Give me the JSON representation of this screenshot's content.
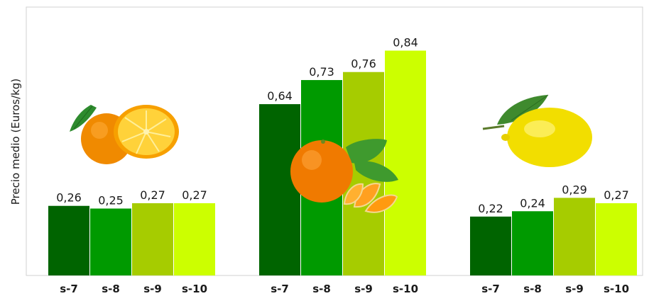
{
  "chart_data": {
    "type": "bar",
    "ylabel": "Precio medio  (Euros/kg)",
    "groups": [
      {
        "icon": "orange-fruit-icon",
        "categories": [
          "s-7",
          "s-8",
          "s-9",
          "s-10"
        ],
        "values": [
          0.26,
          0.25,
          0.27,
          0.27
        ],
        "labels": [
          "0,26",
          "0,25",
          "0,27",
          "0,27"
        ]
      },
      {
        "icon": "mandarin-fruit-icon",
        "categories": [
          "s-7",
          "s-8",
          "s-9",
          "s-10"
        ],
        "values": [
          0.64,
          0.73,
          0.76,
          0.84
        ],
        "labels": [
          "0,64",
          "0,73",
          "0,76",
          "0,84"
        ]
      },
      {
        "icon": "lemon-fruit-icon",
        "categories": [
          "s-7",
          "s-8",
          "s-9",
          "s-10"
        ],
        "values": [
          0.22,
          0.24,
          0.29,
          0.27
        ],
        "labels": [
          "0,22",
          "0,24",
          "0,29",
          "0,27"
        ]
      }
    ],
    "bar_colors": [
      "#006400",
      "#009A00",
      "#A6CC00",
      "#CCFF00"
    ],
    "ylim": [
      0,
      1.0
    ],
    "grid": false,
    "legend": "none"
  }
}
